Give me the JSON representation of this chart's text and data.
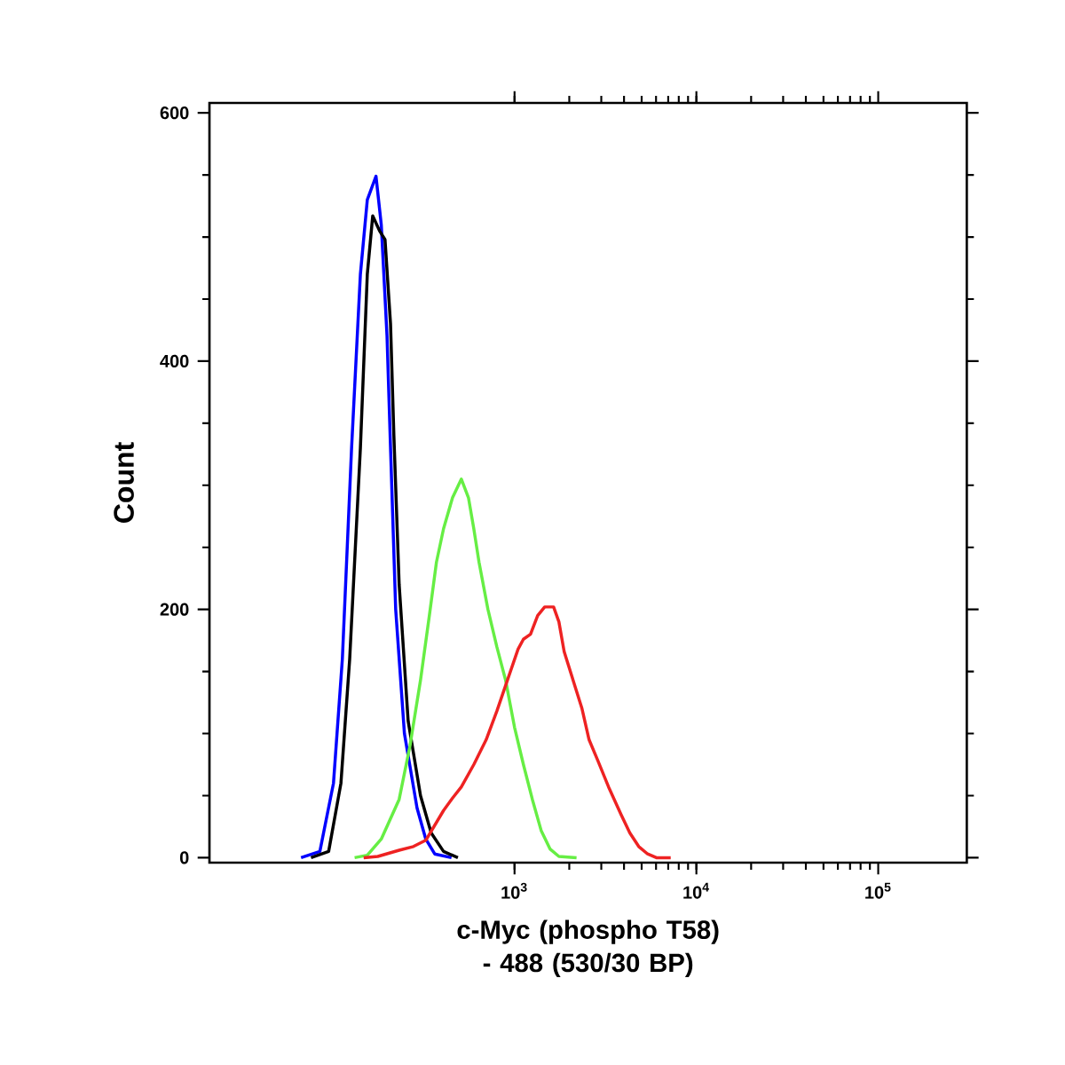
{
  "chart_data": {
    "type": "line",
    "xlabel": "c-Myc (phospho T58) - 488 (530/30 BP)",
    "ylabel": "Count",
    "log": "x",
    "xlim": [
      21,
      307000
    ],
    "ylim": [
      -4,
      608
    ],
    "xticks": [
      {
        "value": 1000,
        "label": "10$^{3}$"
      },
      {
        "value": 10000,
        "label": "10$^{4}$"
      },
      {
        "value": 100000,
        "label": "10$^{5}$"
      }
    ],
    "yticks": [
      0,
      200,
      400,
      600
    ],
    "series": [
      {
        "color": "#0000ff",
        "x": [
          67,
          85,
          101,
          113,
          127,
          142,
          155,
          173,
          185,
          199,
          208,
          222,
          248,
          291,
          325,
          364,
          450
        ],
        "values": [
          0,
          5,
          60,
          160,
          330,
          470,
          530,
          549,
          510,
          420,
          330,
          200,
          100,
          40,
          15,
          3,
          0
        ]
      },
      {
        "color": "#000000",
        "x": [
          76,
          95,
          111,
          124,
          142,
          155,
          166,
          181,
          194,
          208,
          217,
          232,
          260,
          304,
          348,
          407,
          488
        ],
        "values": [
          0,
          5,
          60,
          160,
          330,
          470,
          517,
          505,
          498,
          430,
          340,
          220,
          110,
          50,
          20,
          5,
          0
        ]
      },
      {
        "color": "#66ee44",
        "x": [
          132,
          155,
          185,
          232,
          266,
          304,
          340,
          372,
          407,
          456,
          510,
          558,
          597,
          638,
          714,
          799,
          893,
          1000,
          1119,
          1253,
          1400,
          1567,
          1754,
          2193
        ],
        "values": [
          0,
          2,
          15,
          47,
          90,
          143,
          195,
          238,
          265,
          290,
          305,
          290,
          265,
          238,
          200,
          170,
          143,
          105,
          75,
          47,
          22,
          7,
          1,
          0
        ]
      },
      {
        "color": "#ee2222",
        "x": [
          148,
          177,
          232,
          278,
          325,
          407,
          456,
          510,
          597,
          698,
          799,
          914,
          1046,
          1119,
          1224,
          1340,
          1465,
          1640,
          1754,
          1875,
          2099,
          2350,
          2570,
          2876,
          3289,
          3847,
          4305,
          4819,
          5395,
          6026,
          7225
        ],
        "values": [
          0,
          1,
          6,
          9,
          14,
          38,
          48,
          57,
          75,
          95,
          118,
          143,
          168,
          176,
          180,
          195,
          202,
          202,
          190,
          166,
          143,
          120,
          95,
          78,
          57,
          35,
          20,
          9,
          3,
          0,
          0
        ]
      }
    ]
  }
}
